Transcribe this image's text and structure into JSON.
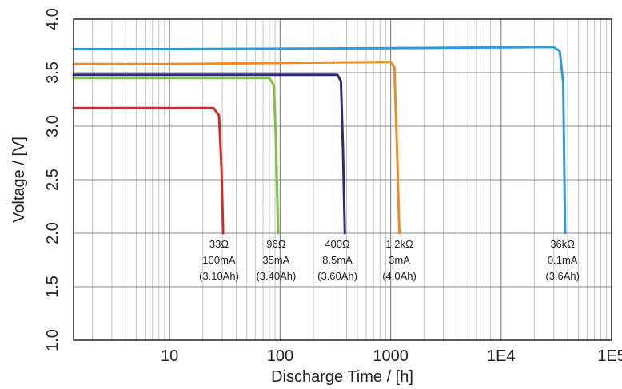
{
  "chart_data": {
    "type": "line",
    "title": "",
    "xlabel": "Discharge Time / [h]",
    "ylabel": "Voltage / [V]",
    "x_scale": "log",
    "xlim": [
      1.35,
      100000
    ],
    "ylim": [
      1.0,
      4.0
    ],
    "grid": true,
    "x_ticks": [
      {
        "value": 10,
        "label": "10"
      },
      {
        "value": 100,
        "label": "100"
      },
      {
        "value": 1000,
        "label": "1000"
      },
      {
        "value": 10000,
        "label": "1E4"
      },
      {
        "value": 100000,
        "label": "1E5"
      }
    ],
    "y_ticks": [
      {
        "value": 1.0,
        "label": "1.0"
      },
      {
        "value": 1.5,
        "label": "1.5"
      },
      {
        "value": 2.0,
        "label": "2.0"
      },
      {
        "value": 2.5,
        "label": "2.5"
      },
      {
        "value": 3.0,
        "label": "3.0"
      },
      {
        "value": 3.5,
        "label": "3.5"
      },
      {
        "value": 4.0,
        "label": "4.0"
      }
    ],
    "series": [
      {
        "color": "#d42a2a",
        "x": [
          1.35,
          10,
          25,
          28,
          29.5,
          30.5
        ],
        "y": [
          3.17,
          3.17,
          3.17,
          3.1,
          2.6,
          2.0
        ],
        "annotation": [
          "33Ω",
          "100mA",
          "(3.10Ah)"
        ],
        "annotation_x": 28
      },
      {
        "color": "#7fc241",
        "x": [
          1.35,
          10,
          80,
          88,
          92,
          96
        ],
        "y": [
          3.45,
          3.45,
          3.45,
          3.38,
          2.8,
          2.0
        ],
        "annotation": [
          "96Ω",
          "35mA",
          "(3.40Ah)"
        ],
        "annotation_x": 92
      },
      {
        "color": "#2b2a7a",
        "x": [
          1.35,
          10,
          330,
          355,
          370,
          385
        ],
        "y": [
          3.48,
          3.48,
          3.48,
          3.42,
          2.8,
          2.0
        ],
        "annotation": [
          "400Ω",
          "8.5mA",
          "(3.60Ah)"
        ],
        "annotation_x": 330
      },
      {
        "color": "#f08a24",
        "x": [
          1.35,
          10,
          1000,
          1080,
          1140,
          1200
        ],
        "y": [
          3.58,
          3.58,
          3.6,
          3.55,
          2.8,
          2.0
        ],
        "annotation": [
          "1.2kΩ",
          "3mA",
          "(4.0Ah)"
        ],
        "annotation_x": 1200
      },
      {
        "color": "#2f9bd8",
        "x": [
          1.35,
          10,
          1000,
          30000,
          34000,
          36500,
          38000
        ],
        "y": [
          3.72,
          3.72,
          3.73,
          3.74,
          3.7,
          3.4,
          2.0
        ],
        "annotation": [
          "36kΩ",
          "0.1mA",
          "(3.6Ah)"
        ],
        "annotation_x": 36000
      }
    ]
  }
}
